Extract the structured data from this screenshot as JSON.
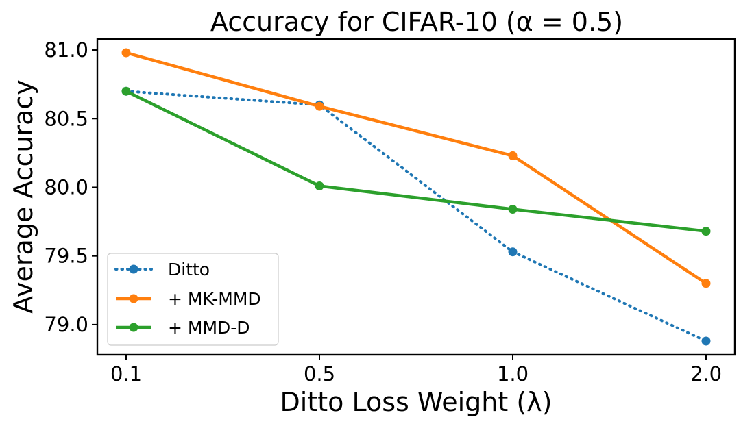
{
  "chart_data": {
    "type": "line",
    "title": "Accuracy for CIFAR-10 (α = 0.5)",
    "xlabel": "Ditto Loss Weight (λ)",
    "ylabel": "Average Accuracy",
    "categories": [
      "0.1",
      "0.5",
      "1.0",
      "2.0"
    ],
    "ylim": [
      78.78,
      81.08
    ],
    "yticks": [
      79.0,
      79.5,
      80.0,
      80.5,
      81.0
    ],
    "ytick_labels": [
      "79.0",
      "79.5",
      "80.0",
      "80.5",
      "81.0"
    ],
    "grid": false,
    "legend_position": "lower-left",
    "series": [
      {
        "name": "Ditto",
        "values": [
          80.7,
          80.6,
          79.53,
          78.88
        ],
        "color": "#1f77b4",
        "style": "dotted"
      },
      {
        "name": "+ MK-MMD",
        "values": [
          80.98,
          80.59,
          80.23,
          79.3
        ],
        "color": "#ff7f0e",
        "style": "solid"
      },
      {
        "name": "+ MMD-D",
        "values": [
          80.7,
          80.01,
          79.84,
          79.68
        ],
        "color": "#2ca02c",
        "style": "solid"
      }
    ]
  }
}
